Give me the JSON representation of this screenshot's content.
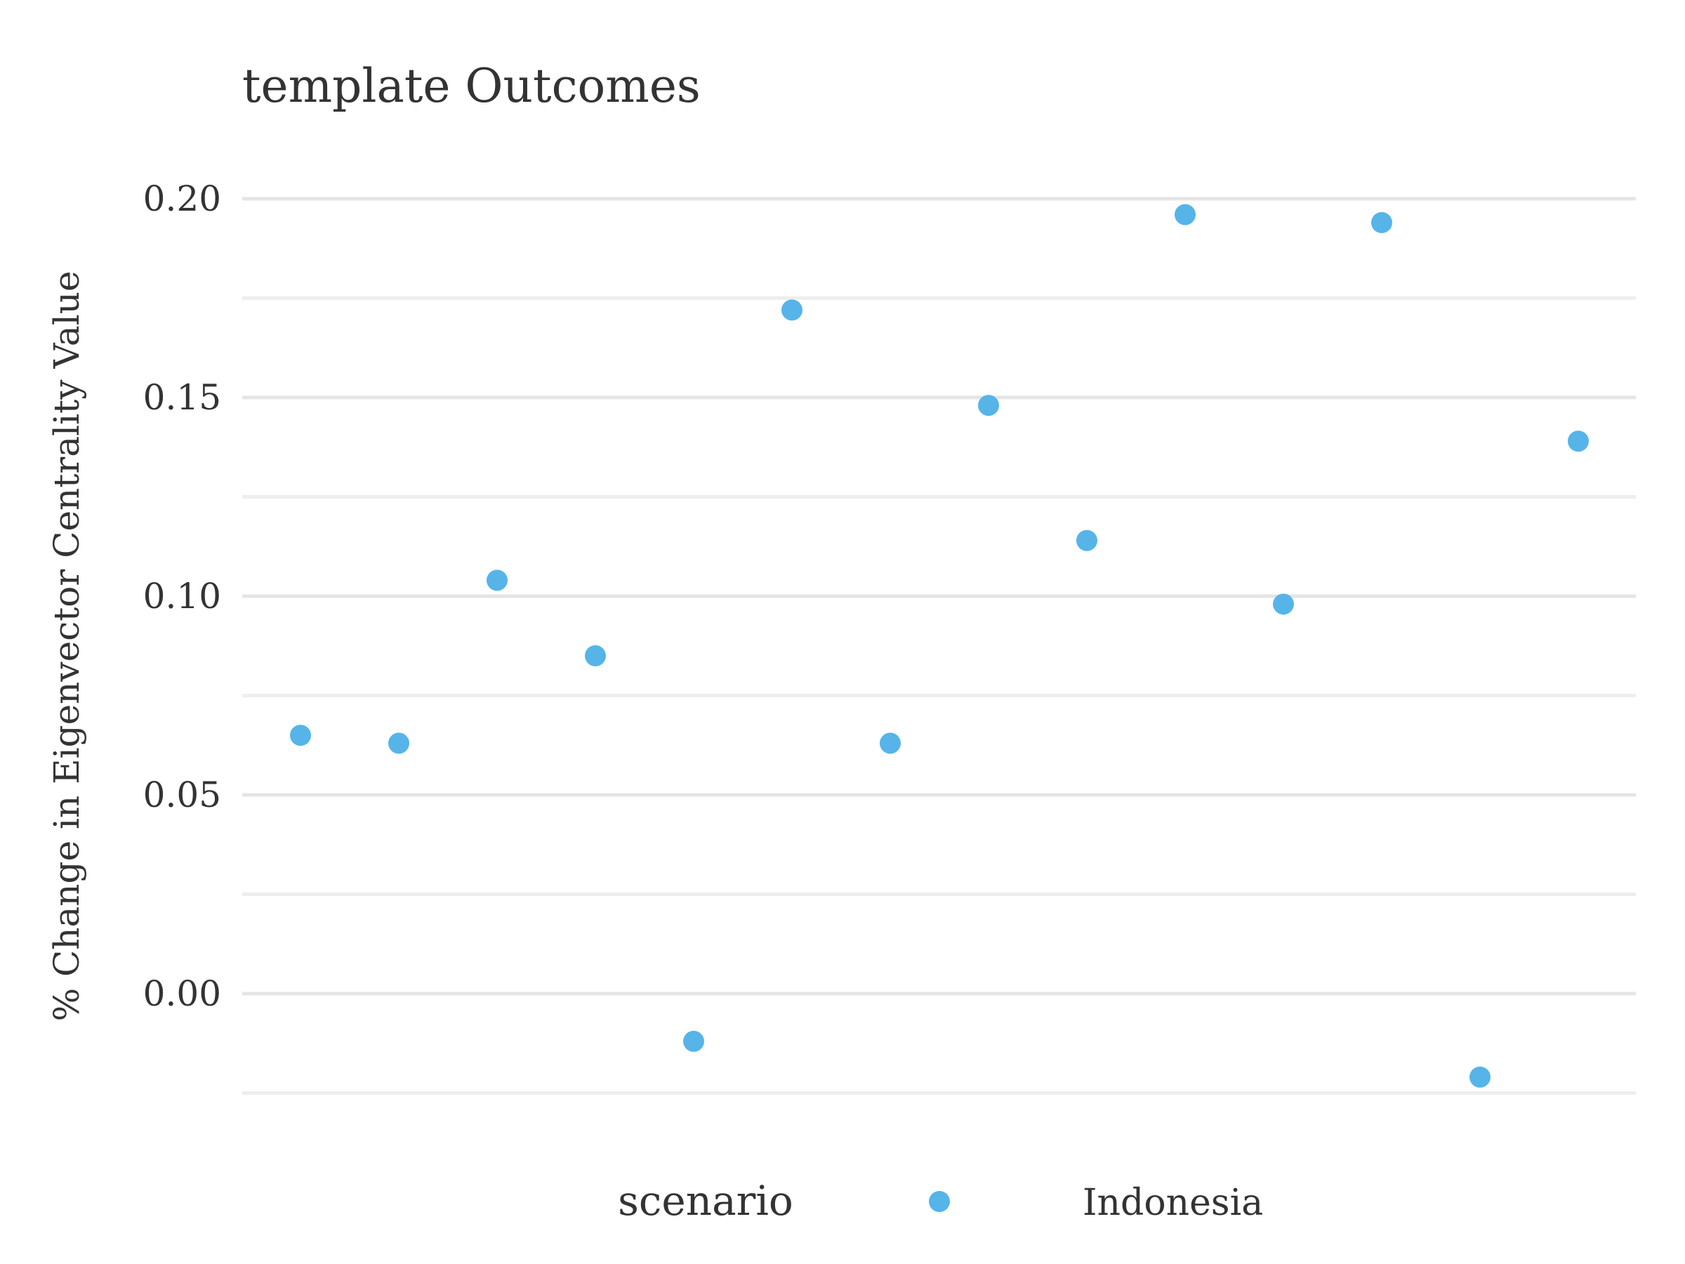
{
  "chart_data": {
    "type": "scatter",
    "title": "template Outcomes",
    "xlabel": "",
    "ylabel": "% Change in Eigenvector Centrality Value",
    "ylim": [
      -0.025,
      0.2
    ],
    "y_ticks": [
      0.2,
      0.15,
      0.1,
      0.05,
      0.0
    ],
    "y_tick_labels": [
      "0.20",
      "0.15",
      "0.10",
      "0.05",
      "0.00"
    ],
    "y_minor_ticks": [
      0.175,
      0.125,
      0.075,
      0.025,
      -0.025
    ],
    "grid": true,
    "legend_position": "bottom",
    "legend_title": "scenario",
    "series": [
      {
        "name": "Indonesia",
        "color": "#56B4E9",
        "x": [
          1,
          2,
          3,
          4,
          5,
          6,
          7,
          8,
          9,
          10,
          11,
          12,
          13,
          14
        ],
        "y": [
          0.065,
          0.063,
          0.104,
          0.085,
          -0.012,
          0.172,
          0.063,
          0.148,
          0.114,
          0.196,
          0.098,
          0.194,
          -0.021,
          0.139
        ]
      }
    ]
  }
}
